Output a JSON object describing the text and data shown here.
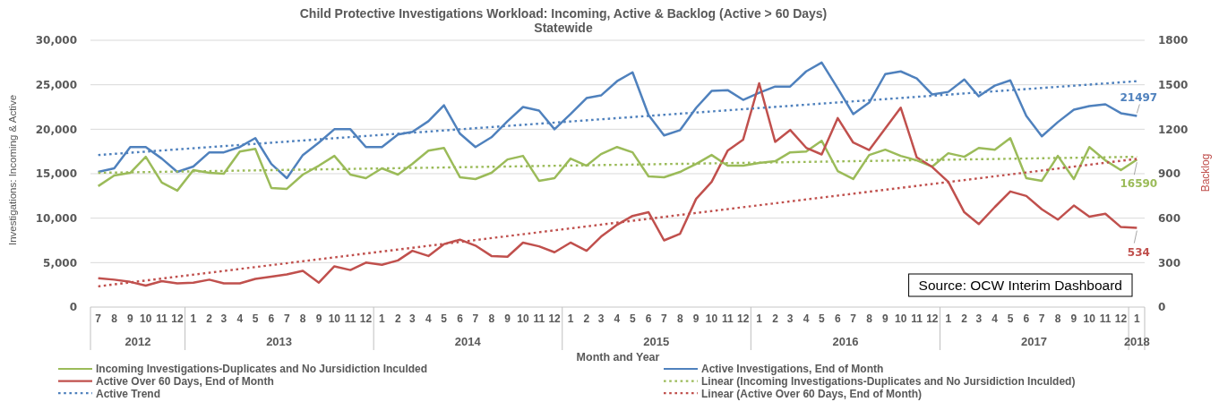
{
  "chart_data": {
    "type": "line",
    "title": "Child Protective Investigations Workload: Incoming, Active & Backlog (Active > 60 Days)",
    "subtitle": "Statewide",
    "xlabel": "Month and Year",
    "ylabel": "Investigations: Incoming & Active",
    "y2label": "Backlog",
    "annotations": [
      "Source: OCW Interim Dashboard"
    ],
    "x": [
      "2012-07",
      "2012-08",
      "2012-09",
      "2012-10",
      "2012-11",
      "2012-12",
      "2013-01",
      "2013-02",
      "2013-03",
      "2013-04",
      "2013-05",
      "2013-06",
      "2013-07",
      "2013-08",
      "2013-09",
      "2013-10",
      "2013-11",
      "2013-12",
      "2014-01",
      "2014-02",
      "2014-03",
      "2014-04",
      "2014-05",
      "2014-06",
      "2014-07",
      "2014-08",
      "2014-09",
      "2014-10",
      "2014-11",
      "2014-12",
      "2015-01",
      "2015-02",
      "2015-03",
      "2015-04",
      "2015-05",
      "2015-06",
      "2015-07",
      "2015-08",
      "2015-09",
      "2015-10",
      "2015-11",
      "2015-12",
      "2016-01",
      "2016-02",
      "2016-03",
      "2016-04",
      "2016-05",
      "2016-06",
      "2016-07",
      "2016-08",
      "2016-09",
      "2016-10",
      "2016-11",
      "2016-12",
      "2017-01",
      "2017-02",
      "2017-03",
      "2017-04",
      "2017-05",
      "2017-06",
      "2017-07",
      "2017-08",
      "2017-09",
      "2017-10",
      "2017-11",
      "2017-12",
      "2018-01"
    ],
    "xlim": [
      "2012-06-16",
      "2018-01-16"
    ],
    "xticks": [
      {
        "value": "2012-06-16",
        "label": null
      },
      {
        "value": "2012-07",
        "label": "7"
      },
      {
        "value": "2012-08",
        "label": "8"
      },
      {
        "value": "2012-09",
        "label": "9"
      },
      {
        "value": "2012-10",
        "label": "10"
      },
      {
        "value": "2012-11",
        "label": "11"
      },
      {
        "value": "2012-12",
        "label": "12"
      },
      {
        "value": "2012-12-16",
        "label": null
      },
      {
        "value": "2013-01",
        "label": "1"
      },
      {
        "value": "2013-02",
        "label": "2"
      },
      {
        "value": "2013-03",
        "label": "3"
      },
      {
        "value": "2013-04",
        "label": "4"
      },
      {
        "value": "2013-05",
        "label": "5"
      },
      {
        "value": "2013-06",
        "label": "6"
      },
      {
        "value": "2013-07",
        "label": "7"
      },
      {
        "value": "2013-08",
        "label": "8"
      },
      {
        "value": "2013-09",
        "label": "9"
      },
      {
        "value": "2013-10",
        "label": "10"
      },
      {
        "value": "2013-11",
        "label": "11"
      },
      {
        "value": "2013-12",
        "label": "12"
      },
      {
        "value": "2013-12-16",
        "label": null
      },
      {
        "value": "2014-01",
        "label": "1"
      },
      {
        "value": "2014-02",
        "label": "2"
      },
      {
        "value": "2014-03",
        "label": "3"
      },
      {
        "value": "2014-04",
        "label": "4"
      },
      {
        "value": "2014-05",
        "label": "5"
      },
      {
        "value": "2014-06",
        "label": "6"
      },
      {
        "value": "2014-07",
        "label": "7"
      },
      {
        "value": "2014-08",
        "label": "8"
      },
      {
        "value": "2014-09",
        "label": "9"
      },
      {
        "value": "2014-10",
        "label": "10"
      },
      {
        "value": "2014-11",
        "label": "11"
      },
      {
        "value": "2014-12",
        "label": "12"
      },
      {
        "value": "2014-12-16",
        "label": null
      },
      {
        "value": "2015-01",
        "label": "1"
      },
      {
        "value": "2015-02",
        "label": "2"
      },
      {
        "value": "2015-03",
        "label": "3"
      },
      {
        "value": "2015-04",
        "label": "4"
      },
      {
        "value": "2015-05",
        "label": "5"
      },
      {
        "value": "2015-06",
        "label": "6"
      },
      {
        "value": "2015-07",
        "label": "7"
      },
      {
        "value": "2015-08",
        "label": "8"
      },
      {
        "value": "2015-09",
        "label": "9"
      },
      {
        "value": "2015-10",
        "label": "10"
      },
      {
        "value": "2015-11",
        "label": "11"
      },
      {
        "value": "2015-12",
        "label": "12"
      },
      {
        "value": "2015-12-16",
        "label": null
      },
      {
        "value": "2016-01",
        "label": "1"
      },
      {
        "value": "2016-02",
        "label": "2"
      },
      {
        "value": "2016-03",
        "label": "3"
      },
      {
        "value": "2016-04",
        "label": "4"
      },
      {
        "value": "2016-05",
        "label": "5"
      },
      {
        "value": "2016-06",
        "label": "6"
      },
      {
        "value": "2016-07",
        "label": "7"
      },
      {
        "value": "2016-08",
        "label": "8"
      },
      {
        "value": "2016-09",
        "label": "9"
      },
      {
        "value": "2016-10",
        "label": "10"
      },
      {
        "value": "2016-11",
        "label": "11"
      },
      {
        "value": "2016-12",
        "label": "12"
      },
      {
        "value": "2016-12-16",
        "label": null
      },
      {
        "value": "2017-01",
        "label": "1"
      },
      {
        "value": "2017-02",
        "label": "2"
      },
      {
        "value": "2017-03",
        "label": "3"
      },
      {
        "value": "2017-04",
        "label": "4"
      },
      {
        "value": "2017-05",
        "label": "5"
      },
      {
        "value": "2017-06",
        "label": "6"
      },
      {
        "value": "2017-07",
        "label": "7"
      },
      {
        "value": "2017-08",
        "label": "8"
      },
      {
        "value": "2017-09",
        "label": "9"
      },
      {
        "value": "2017-10",
        "label": "10"
      },
      {
        "value": "2017-11",
        "label": "11"
      },
      {
        "value": "2017-12",
        "label": "12"
      },
      {
        "value": "2017-12-16",
        "label": null
      },
      {
        "value": "2018-01",
        "label": "1"
      },
      {
        "value": "2018-01-16",
        "label": null
      }
    ],
    "x2lim": [
      "2012-06-16",
      "2018-01-16"
    ],
    "x2ticks": [
      {
        "value": "2012-09-16",
        "label": "2012"
      },
      {
        "value": "2013-06-16",
        "label": "2013"
      },
      {
        "value": "2014-06-16",
        "label": "2014"
      },
      {
        "value": "2015-06-16",
        "label": "2015"
      },
      {
        "value": "2016-06-16",
        "label": "2016"
      },
      {
        "value": "2017-06-16",
        "label": "2017"
      },
      {
        "value": "2018-01-01",
        "label": "2018"
      }
    ],
    "ylim": [
      0,
      30000
    ],
    "yticks": [
      0,
      {
        "value": 5000,
        "label": "5,000"
      },
      {
        "value": 10000,
        "label": "10,000"
      },
      {
        "value": 15000,
        "label": "15,000"
      },
      {
        "value": 20000,
        "label": "20,000"
      },
      {
        "value": 25000,
        "label": "25,000"
      },
      {
        "value": 30000,
        "label": "30,000"
      }
    ],
    "y2lim": [
      0,
      1800
    ],
    "y2ticks": [
      0,
      300,
      600,
      900,
      1200,
      1500,
      1800
    ],
    "grid": "y",
    "legend": "bottom",
    "series": [
      {
        "name": "Incoming Investigations-Duplicates and No Jursidiction Inculded",
        "color": "#9bbb59",
        "values": [
          13600,
          14800,
          15100,
          16900,
          14000,
          13100,
          15400,
          15100,
          15000,
          17500,
          17800,
          13400,
          13300,
          14900,
          15900,
          17000,
          14900,
          14500,
          15600,
          14900,
          16100,
          17600,
          17900,
          14600,
          14400,
          15100,
          16600,
          17000,
          14200,
          14500,
          16700,
          15900,
          17200,
          18000,
          17400,
          14700,
          14600,
          15200,
          16100,
          17100,
          15900,
          15900,
          16200,
          16400,
          17400,
          17500,
          18700,
          15300,
          14400,
          17100,
          17700,
          17000,
          16500,
          15800,
          17300,
          16900,
          17900,
          17700,
          19000,
          14500,
          14200,
          17000,
          14400,
          18000,
          16500,
          15400,
          16590
        ],
        "value_labels": [
          null,
          null,
          null,
          null,
          null,
          null,
          null,
          null,
          null,
          null,
          null,
          null,
          null,
          null,
          null,
          null,
          null,
          null,
          null,
          null,
          null,
          null,
          null,
          null,
          null,
          null,
          null,
          null,
          null,
          null,
          null,
          null,
          null,
          null,
          null,
          null,
          null,
          null,
          null,
          null,
          null,
          null,
          null,
          null,
          null,
          null,
          null,
          null,
          null,
          null,
          null,
          null,
          null,
          null,
          null,
          null,
          null,
          null,
          null,
          null,
          null,
          null,
          null,
          null,
          null,
          null,
          "16590"
        ]
      },
      {
        "name": "Active Investigations, End of Month",
        "color": "#4f81bd",
        "values": [
          15200,
          15600,
          18000,
          18000,
          16700,
          15200,
          15800,
          17400,
          17400,
          18000,
          19000,
          16100,
          14500,
          17100,
          18500,
          20000,
          20000,
          18000,
          18000,
          19400,
          19700,
          20900,
          22700,
          19500,
          18000,
          19100,
          20900,
          22500,
          22100,
          20000,
          21700,
          23500,
          23800,
          25400,
          26400,
          21600,
          19300,
          19900,
          22400,
          24300,
          24400,
          23300,
          24100,
          24800,
          24800,
          26500,
          27500,
          24600,
          21700,
          23000,
          26200,
          26500,
          25700,
          23900,
          24200,
          25600,
          23700,
          24900,
          25500,
          21500,
          19200,
          20800,
          22200,
          22600,
          22800,
          21800,
          21497
        ],
        "value_labels": [
          null,
          null,
          null,
          null,
          null,
          null,
          null,
          null,
          null,
          null,
          null,
          null,
          null,
          null,
          null,
          null,
          null,
          null,
          null,
          null,
          null,
          null,
          null,
          null,
          null,
          null,
          null,
          null,
          null,
          null,
          null,
          null,
          null,
          null,
          null,
          null,
          null,
          null,
          null,
          null,
          null,
          null,
          null,
          null,
          null,
          null,
          null,
          null,
          null,
          null,
          null,
          null,
          null,
          null,
          null,
          null,
          null,
          null,
          null,
          null,
          null,
          null,
          null,
          null,
          null,
          null,
          "21497"
        ]
      },
      {
        "name": "Active Over 60 Days, End of Month",
        "color": "#c0504d",
        "axis": "y2",
        "values": [
          195,
          185,
          170,
          145,
          175,
          160,
          165,
          185,
          160,
          160,
          190,
          205,
          220,
          245,
          165,
          275,
          250,
          300,
          285,
          315,
          380,
          345,
          425,
          455,
          415,
          345,
          340,
          435,
          410,
          370,
          435,
          380,
          475,
          555,
          615,
          640,
          450,
          495,
          730,
          845,
          1055,
          1130,
          1510,
          1115,
          1195,
          1075,
          1030,
          1275,
          1110,
          1060,
          1205,
          1345,
          1010,
          945,
          845,
          640,
          560,
          675,
          780,
          750,
          660,
          590,
          685,
          610,
          630,
          540,
          534
        ],
        "value_labels": [
          null,
          null,
          null,
          null,
          null,
          null,
          null,
          null,
          null,
          null,
          null,
          null,
          null,
          null,
          null,
          null,
          null,
          null,
          null,
          null,
          null,
          null,
          null,
          null,
          null,
          null,
          null,
          null,
          null,
          null,
          null,
          null,
          null,
          null,
          null,
          null,
          null,
          null,
          null,
          null,
          null,
          null,
          null,
          null,
          null,
          null,
          null,
          null,
          null,
          null,
          null,
          null,
          null,
          null,
          null,
          null,
          null,
          null,
          null,
          null,
          null,
          null,
          null,
          null,
          null,
          null,
          "534"
        ]
      },
      {
        "name": "Linear (Incoming Investigations-Duplicates and No Jursidiction Inculded)",
        "color": "#9bbb59",
        "line_style": "dotted",
        "x": [
          "2012-07",
          "2018-01"
        ],
        "values": [
          15100,
          16900
        ]
      },
      {
        "name": "Active Trend",
        "color": "#4f81bd",
        "line_style": "dotted",
        "x": [
          "2012-07",
          "2018-01"
        ],
        "values": [
          17100,
          25400
        ]
      },
      {
        "name": "Linear (Active Over 60 Days, End of Month)",
        "color": "#c0504d",
        "line_style": "dotted",
        "axis": "y2",
        "x": [
          "2012-07",
          "2018-01"
        ],
        "values": [
          140,
          1000
        ]
      }
    ]
  }
}
